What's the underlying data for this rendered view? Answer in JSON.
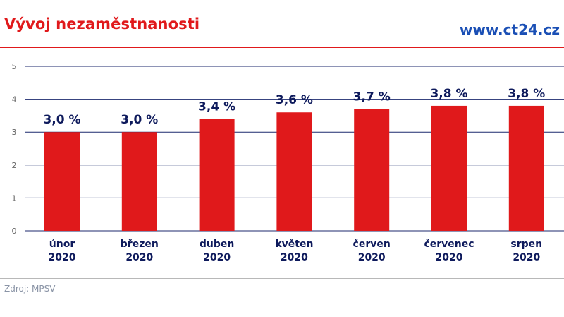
{
  "header": {
    "title": "Vývoj nezaměstnanosti",
    "brand": "www.ct24.cz"
  },
  "footer": {
    "source": "Zdroj: MPSV"
  },
  "colors": {
    "bar": "#e0191b",
    "grid": "#1c2a6e",
    "label": "#0e1a5c"
  },
  "chart_data": {
    "type": "bar",
    "title": "Vývoj nezaměstnanosti",
    "xlabel": "",
    "ylabel": "",
    "ylim": [
      0,
      5
    ],
    "yticks": [
      0,
      1,
      2,
      3,
      4,
      5
    ],
    "grid": true,
    "categories": [
      [
        "únor",
        "2020"
      ],
      [
        "březen",
        "2020"
      ],
      [
        "duben",
        "2020"
      ],
      [
        "květen",
        "2020"
      ],
      [
        "červen",
        "2020"
      ],
      [
        "červenec",
        "2020"
      ],
      [
        "srpen",
        "2020"
      ]
    ],
    "values": [
      3.0,
      3.0,
      3.4,
      3.6,
      3.7,
      3.8,
      3.8
    ],
    "value_labels": [
      "3,0 %",
      "3,0 %",
      "3,4 %",
      "3,6 %",
      "3,7 %",
      "3,8 %",
      "3,8 %"
    ]
  }
}
